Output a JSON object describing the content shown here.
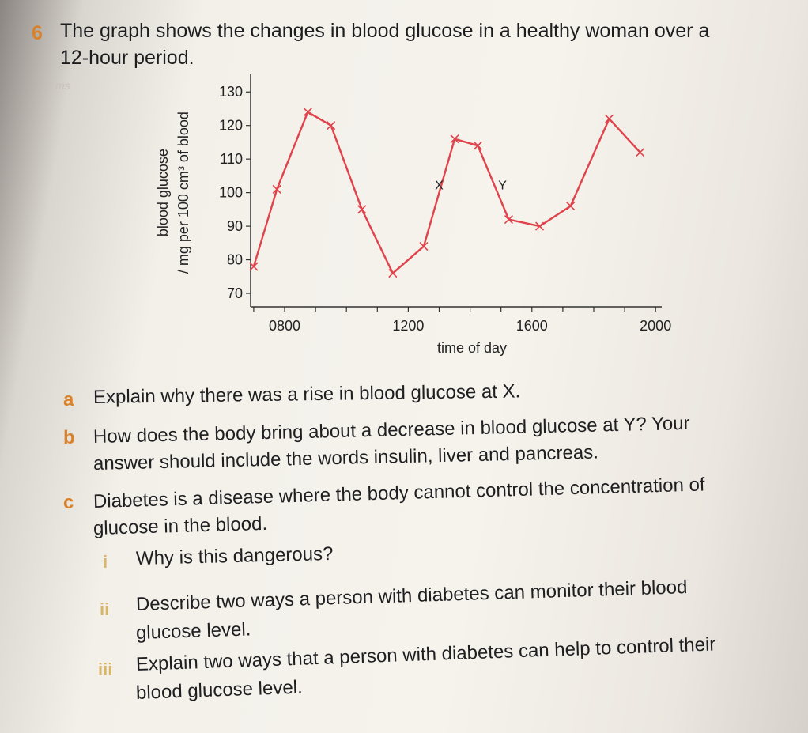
{
  "question": {
    "number": "6",
    "line1": "The graph shows the changes in blood glucose in a healthy woman over a",
    "line2": "12-hour period.",
    "smudge": "ms"
  },
  "chart_data": {
    "type": "line",
    "ylabel_line1": "blood glucose",
    "ylabel_line2": "/ mg per 100 cm³ of blood",
    "xlabel": "time of day",
    "y_ticks": [
      70,
      80,
      90,
      100,
      110,
      120,
      130
    ],
    "x_tick_labels": [
      {
        "value": 800,
        "label": "0800"
      },
      {
        "value": 1200,
        "label": "1200"
      },
      {
        "value": 1600,
        "label": "1600"
      },
      {
        "value": 2000,
        "label": "2000"
      }
    ],
    "x_tick_marks_hours": [
      7,
      8,
      9,
      10,
      11,
      12,
      13,
      14,
      15,
      16,
      17,
      18,
      19,
      20
    ],
    "xlim_hours": [
      6.9,
      20.2
    ],
    "ylim": [
      66,
      135
    ],
    "color": "#e0434b",
    "x": [
      7.0,
      7.75,
      8.75,
      9.5,
      10.5,
      11.5,
      12.5,
      13.5,
      14.25,
      15.25,
      16.25,
      17.25,
      18.5,
      19.5
    ],
    "y": [
      78,
      101,
      124,
      120,
      95,
      76,
      84,
      116,
      114,
      92,
      90,
      96,
      122,
      112
    ],
    "annotations": [
      {
        "label": "X",
        "x": 13.0,
        "y": 101
      },
      {
        "label": "Y",
        "x": 15.05,
        "y": 101
      }
    ]
  },
  "parts": {
    "a_letter": "a",
    "a_text": "Explain why there was a rise in blood glucose at X.",
    "b_letter": "b",
    "b_line1": "How does the body bring about a decrease in blood glucose at Y? Your",
    "b_line2": "answer should include the words insulin, liver and pancreas.",
    "c_letter": "c",
    "c_line1": "Diabetes is a disease where the body cannot control the concentration of",
    "c_line2": "glucose in the blood.",
    "ci_num": "i",
    "ci_text": "Why is this dangerous?",
    "cii_num": "ii",
    "cii_line1": "Describe two ways a person with diabetes can monitor their blood",
    "cii_line2": "glucose level.",
    "ciii_num": "iii",
    "ciii_line1": "Explain two ways that a person with diabetes can help to control their",
    "ciii_line2": "blood glucose level."
  }
}
